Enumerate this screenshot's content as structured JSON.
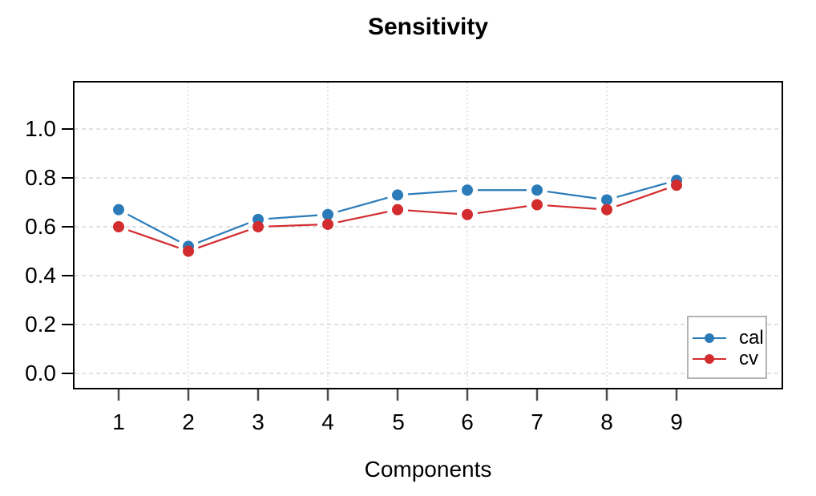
{
  "title": "Sensitivity",
  "xlabel": "Components",
  "chart_data": {
    "type": "line",
    "title": "Sensitivity",
    "xlabel": "Components",
    "ylabel": "",
    "x": [
      1,
      2,
      3,
      4,
      5,
      6,
      7,
      8,
      9
    ],
    "x_tick_labels": [
      "1",
      "2",
      "3",
      "4",
      "5",
      "6",
      "7",
      "8",
      "9"
    ],
    "y_tick_labels": [
      "0.0",
      "0.2",
      "0.4",
      "0.6",
      "0.8",
      "1.0"
    ],
    "y_tick_values": [
      0.0,
      0.2,
      0.4,
      0.6,
      0.8,
      1.0
    ],
    "ylim": [
      -0.06,
      1.19
    ],
    "xlim": [
      0.36,
      10.52
    ],
    "grid": {
      "show": true,
      "style": "dashed",
      "color": "#d9d9d9",
      "x_at": [
        2,
        4,
        6,
        8
      ],
      "y_at": [
        0.0,
        0.2,
        0.4,
        0.6,
        0.8,
        1.0
      ]
    },
    "marker": "filled-circle",
    "line_point_gap": true,
    "series": [
      {
        "name": "cal",
        "color": "#2b7bb9",
        "values": [
          0.67,
          0.52,
          0.63,
          0.65,
          0.73,
          0.75,
          0.75,
          0.71,
          0.79
        ]
      },
      {
        "name": "cv",
        "color": "#d22c2f",
        "values": [
          0.6,
          0.5,
          0.6,
          0.61,
          0.67,
          0.65,
          0.69,
          0.67,
          0.77
        ]
      }
    ],
    "legend": {
      "position": "bottom-right",
      "border_color": "#b3b3b3"
    }
  }
}
